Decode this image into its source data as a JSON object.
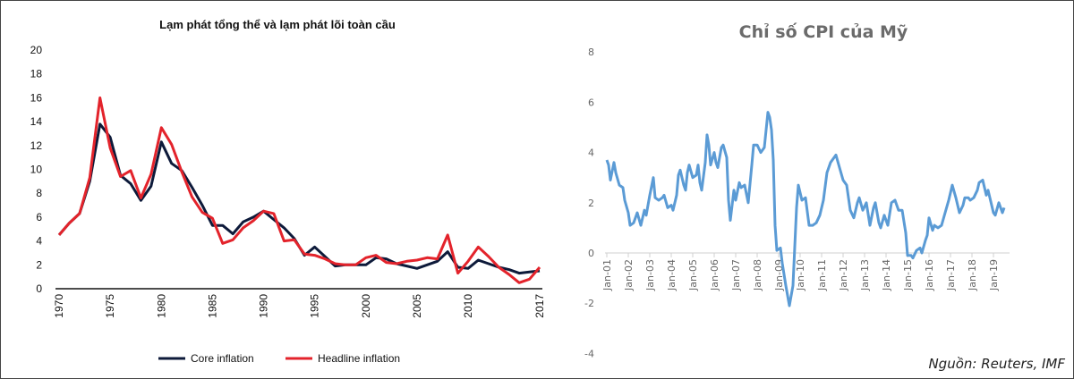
{
  "chart_data": [
    {
      "type": "line",
      "title": "Lạm phát tổng thể và lạm phát lõi toàn cầu",
      "xlabel": "",
      "ylabel": "",
      "x_ticks": [
        "1970",
        "1975",
        "1980",
        "1985",
        "1990",
        "1995",
        "2000",
        "2005",
        "2010",
        "2017"
      ],
      "y_ticks": [
        "0",
        "2",
        "4",
        "6",
        "8",
        "10",
        "12",
        "14",
        "16",
        "18",
        "20"
      ],
      "ylim": [
        0,
        20
      ],
      "xlim": [
        1970,
        2017
      ],
      "grid": false,
      "legend": "bottom",
      "x": [
        1970,
        1971,
        1972,
        1973,
        1974,
        1975,
        1976,
        1977,
        1978,
        1979,
        1980,
        1981,
        1982,
        1983,
        1984,
        1985,
        1986,
        1987,
        1988,
        1989,
        1990,
        1991,
        1992,
        1993,
        1994,
        1995,
        1996,
        1997,
        1998,
        1999,
        2000,
        2001,
        2002,
        2003,
        2004,
        2005,
        2006,
        2007,
        2008,
        2009,
        2010,
        2011,
        2012,
        2013,
        2014,
        2015,
        2016,
        2017
      ],
      "series": [
        {
          "name": "Core inflation",
          "color": "#0d1a3a",
          "values": [
            4.5,
            5.5,
            6.3,
            9.0,
            13.8,
            12.7,
            9.5,
            8.8,
            7.4,
            8.6,
            12.3,
            10.5,
            9.9,
            8.5,
            7.0,
            5.3,
            5.3,
            4.6,
            5.6,
            6.0,
            6.5,
            5.8,
            5.1,
            4.2,
            2.8,
            3.5,
            2.7,
            1.9,
            2.0,
            2.0,
            2.0,
            2.6,
            2.5,
            2.1,
            1.9,
            1.7,
            2.0,
            2.3,
            3.1,
            1.8,
            1.7,
            2.4,
            2.1,
            1.8,
            1.6,
            1.3,
            1.4,
            1.5
          ]
        },
        {
          "name": "Headline inflation",
          "color": "#e3232b",
          "values": [
            4.5,
            5.5,
            6.3,
            9.3,
            16.0,
            11.8,
            9.4,
            9.9,
            7.6,
            9.6,
            13.5,
            12.1,
            9.8,
            7.7,
            6.4,
            5.9,
            3.8,
            4.1,
            5.1,
            5.7,
            6.5,
            6.3,
            4.0,
            4.1,
            2.9,
            2.8,
            2.5,
            2.1,
            2.0,
            2.0,
            2.6,
            2.8,
            2.2,
            2.1,
            2.3,
            2.4,
            2.6,
            2.5,
            4.5,
            1.3,
            2.3,
            3.5,
            2.7,
            1.8,
            1.2,
            0.5,
            0.8,
            1.8
          ]
        }
      ]
    },
    {
      "type": "line",
      "title": "Chỉ số CPI của Mỹ",
      "xlabel": "",
      "ylabel": "",
      "x_ticks": [
        "Jan-01",
        "Jan-02",
        "Jan-03",
        "Jan-04",
        "Jan-05",
        "Jan-06",
        "Jan-07",
        "Jan-08",
        "Jan-09",
        "Jan-10",
        "Jan-11",
        "Jan-12",
        "Jan-13",
        "Jan-14",
        "Jan-15",
        "Jan-16",
        "Jan-17",
        "Jan-18",
        "Jan-19"
      ],
      "y_ticks": [
        "-4",
        "-2",
        "0",
        "2",
        "4",
        "6",
        "8"
      ],
      "ylim": [
        -4,
        8
      ],
      "grid": false,
      "source": "Nguồn: Reuters, IMF",
      "series": [
        {
          "color": "#5b9bd5",
          "points": [
            [
              "2001-01",
              3.7
            ],
            [
              "2001-02",
              3.5
            ],
            [
              "2001-03",
              2.9
            ],
            [
              "2001-05",
              3.6
            ],
            [
              "2001-06",
              3.2
            ],
            [
              "2001-08",
              2.7
            ],
            [
              "2001-10",
              2.6
            ],
            [
              "2001-11",
              2.1
            ],
            [
              "2002-01",
              1.6
            ],
            [
              "2002-02",
              1.1
            ],
            [
              "2002-04",
              1.2
            ],
            [
              "2002-06",
              1.6
            ],
            [
              "2002-08",
              1.1
            ],
            [
              "2002-10",
              1.7
            ],
            [
              "2002-11",
              1.5
            ],
            [
              "2003-01",
              2.3
            ],
            [
              "2003-03",
              3.0
            ],
            [
              "2003-04",
              2.2
            ],
            [
              "2003-06",
              2.1
            ],
            [
              "2003-08",
              2.2
            ],
            [
              "2003-09",
              2.3
            ],
            [
              "2003-11",
              1.8
            ],
            [
              "2004-01",
              1.9
            ],
            [
              "2004-02",
              1.7
            ],
            [
              "2004-04",
              2.3
            ],
            [
              "2004-05",
              3.1
            ],
            [
              "2004-06",
              3.3
            ],
            [
              "2004-08",
              2.7
            ],
            [
              "2004-09",
              2.5
            ],
            [
              "2004-10",
              3.2
            ],
            [
              "2004-11",
              3.5
            ],
            [
              "2005-01",
              3.0
            ],
            [
              "2005-03",
              3.1
            ],
            [
              "2005-04",
              3.5
            ],
            [
              "2005-05",
              2.8
            ],
            [
              "2005-06",
              2.5
            ],
            [
              "2005-08",
              3.6
            ],
            [
              "2005-09",
              4.7
            ],
            [
              "2005-10",
              4.3
            ],
            [
              "2005-11",
              3.5
            ],
            [
              "2006-01",
              4.0
            ],
            [
              "2006-02",
              3.6
            ],
            [
              "2006-03",
              3.4
            ],
            [
              "2006-05",
              4.2
            ],
            [
              "2006-06",
              4.3
            ],
            [
              "2006-08",
              3.8
            ],
            [
              "2006-09",
              2.1
            ],
            [
              "2006-10",
              1.3
            ],
            [
              "2006-12",
              2.5
            ],
            [
              "2007-01",
              2.1
            ],
            [
              "2007-03",
              2.8
            ],
            [
              "2007-04",
              2.6
            ],
            [
              "2007-06",
              2.7
            ],
            [
              "2007-08",
              2.0
            ],
            [
              "2007-10",
              3.5
            ],
            [
              "2007-11",
              4.3
            ],
            [
              "2008-01",
              4.3
            ],
            [
              "2008-03",
              4.0
            ],
            [
              "2008-05",
              4.2
            ],
            [
              "2008-07",
              5.6
            ],
            [
              "2008-08",
              5.4
            ],
            [
              "2008-09",
              4.9
            ],
            [
              "2008-10",
              3.7
            ],
            [
              "2008-11",
              1.1
            ],
            [
              "2008-12",
              0.1
            ],
            [
              "2009-02",
              0.2
            ],
            [
              "2009-03",
              -0.4
            ],
            [
              "2009-05",
              -1.3
            ],
            [
              "2009-07",
              -2.1
            ],
            [
              "2009-09",
              -1.3
            ],
            [
              "2009-11",
              1.8
            ],
            [
              "2009-12",
              2.7
            ],
            [
              "2010-02",
              2.1
            ],
            [
              "2010-04",
              2.2
            ],
            [
              "2010-06",
              1.1
            ],
            [
              "2010-08",
              1.1
            ],
            [
              "2010-10",
              1.2
            ],
            [
              "2010-12",
              1.5
            ],
            [
              "2011-02",
              2.1
            ],
            [
              "2011-04",
              3.2
            ],
            [
              "2011-06",
              3.6
            ],
            [
              "2011-09",
              3.9
            ],
            [
              "2011-11",
              3.4
            ],
            [
              "2012-01",
              2.9
            ],
            [
              "2012-03",
              2.7
            ],
            [
              "2012-05",
              1.7
            ],
            [
              "2012-07",
              1.4
            ],
            [
              "2012-09",
              2.0
            ],
            [
              "2012-10",
              2.2
            ],
            [
              "2012-12",
              1.7
            ],
            [
              "2013-02",
              2.0
            ],
            [
              "2013-04",
              1.1
            ],
            [
              "2013-06",
              1.8
            ],
            [
              "2013-07",
              2.0
            ],
            [
              "2013-09",
              1.2
            ],
            [
              "2013-10",
              1.0
            ],
            [
              "2013-12",
              1.5
            ],
            [
              "2014-02",
              1.1
            ],
            [
              "2014-04",
              2.0
            ],
            [
              "2014-06",
              2.1
            ],
            [
              "2014-08",
              1.7
            ],
            [
              "2014-10",
              1.7
            ],
            [
              "2014-12",
              0.8
            ],
            [
              "2015-01",
              -0.1
            ],
            [
              "2015-03",
              -0.1
            ],
            [
              "2015-04",
              -0.2
            ],
            [
              "2015-06",
              0.1
            ],
            [
              "2015-08",
              0.2
            ],
            [
              "2015-09",
              0.0
            ],
            [
              "2015-11",
              0.5
            ],
            [
              "2015-12",
              0.7
            ],
            [
              "2016-01",
              1.4
            ],
            [
              "2016-03",
              0.9
            ],
            [
              "2016-04",
              1.1
            ],
            [
              "2016-06",
              1.0
            ],
            [
              "2016-08",
              1.1
            ],
            [
              "2016-10",
              1.6
            ],
            [
              "2016-12",
              2.1
            ],
            [
              "2017-02",
              2.7
            ],
            [
              "2017-04",
              2.2
            ],
            [
              "2017-06",
              1.6
            ],
            [
              "2017-08",
              1.9
            ],
            [
              "2017-09",
              2.2
            ],
            [
              "2017-11",
              2.2
            ],
            [
              "2017-12",
              2.1
            ],
            [
              "2018-02",
              2.2
            ],
            [
              "2018-04",
              2.5
            ],
            [
              "2018-05",
              2.8
            ],
            [
              "2018-07",
              2.9
            ],
            [
              "2018-09",
              2.3
            ],
            [
              "2018-10",
              2.5
            ],
            [
              "2018-11",
              2.2
            ],
            [
              "2019-01",
              1.6
            ],
            [
              "2019-02",
              1.5
            ],
            [
              "2019-04",
              2.0
            ],
            [
              "2019-06",
              1.6
            ],
            [
              "2019-07",
              1.8
            ]
          ]
        }
      ]
    }
  ]
}
